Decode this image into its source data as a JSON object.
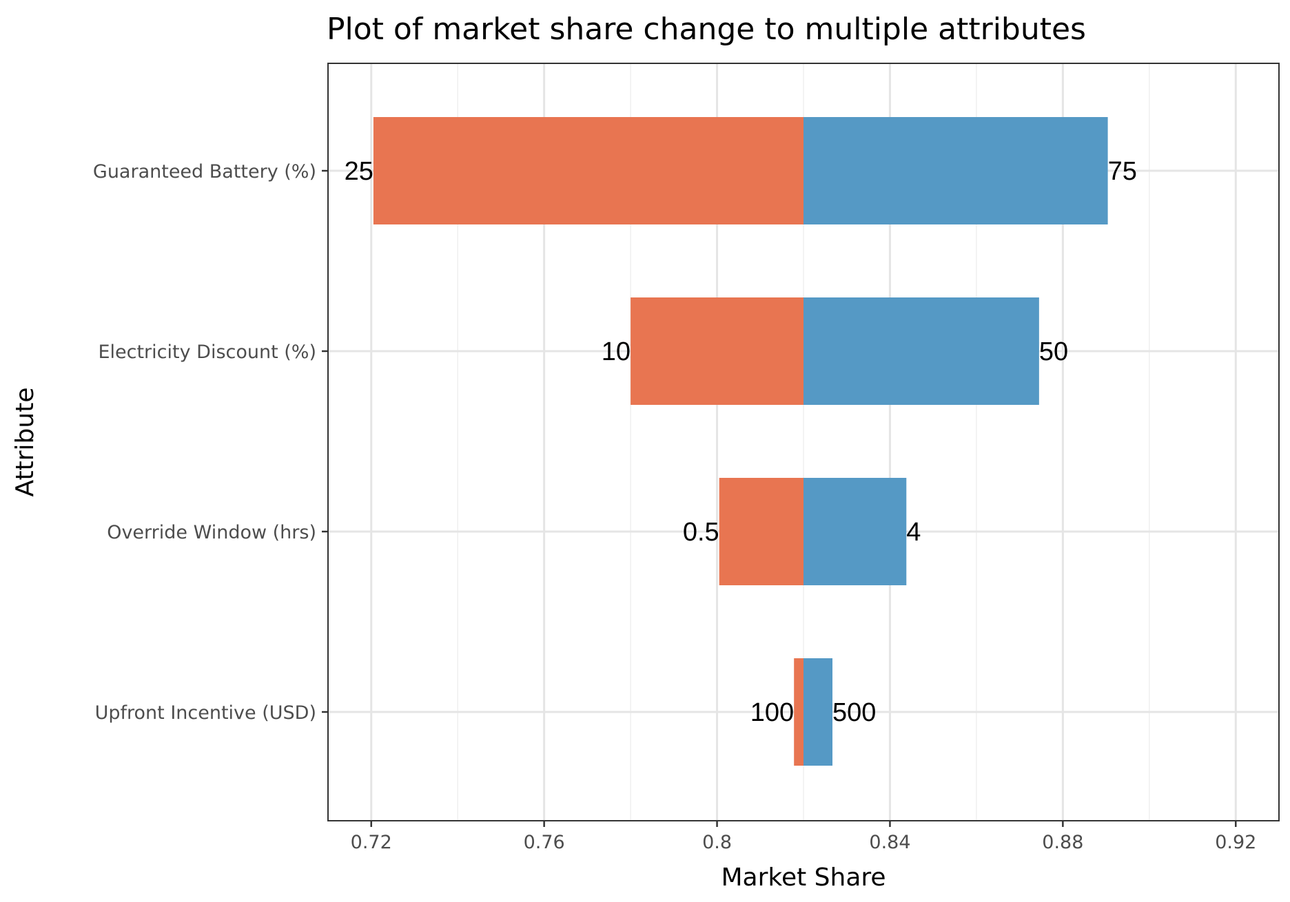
{
  "chart_data": {
    "type": "bar",
    "orientation": "horizontal",
    "title": "Plot of market share change to multiple attributes",
    "xlabel": "Market Share",
    "ylabel": "Attribute",
    "xlim": [
      0.71,
      0.93
    ],
    "x_ticks": [
      "0.72",
      "0.76",
      "0.8",
      "0.84",
      "0.88",
      "0.92"
    ],
    "x_tick_values": [
      0.72,
      0.76,
      0.8,
      0.84,
      0.88,
      0.92
    ],
    "x_minor_tick_values": [
      0.74,
      0.78,
      0.82,
      0.86,
      0.9
    ],
    "baseline": 0.82,
    "grid": true,
    "legend": "none",
    "categories": [
      "Guaranteed Battery (%)",
      "Electricity Discount (%)",
      "Override Window (hrs)",
      "Upfront Incentive (USD)"
    ],
    "series": [
      {
        "color": "#E87551",
        "low_values": [
          0.7205,
          0.78,
          0.8005,
          0.8178
        ],
        "labels": [
          "25",
          "10",
          "0.5",
          "100"
        ]
      },
      {
        "color": "#5599C5",
        "high_values": [
          0.8904,
          0.8745,
          0.8438,
          0.8267
        ],
        "labels": [
          "75",
          "50",
          "4",
          "500"
        ]
      }
    ]
  }
}
